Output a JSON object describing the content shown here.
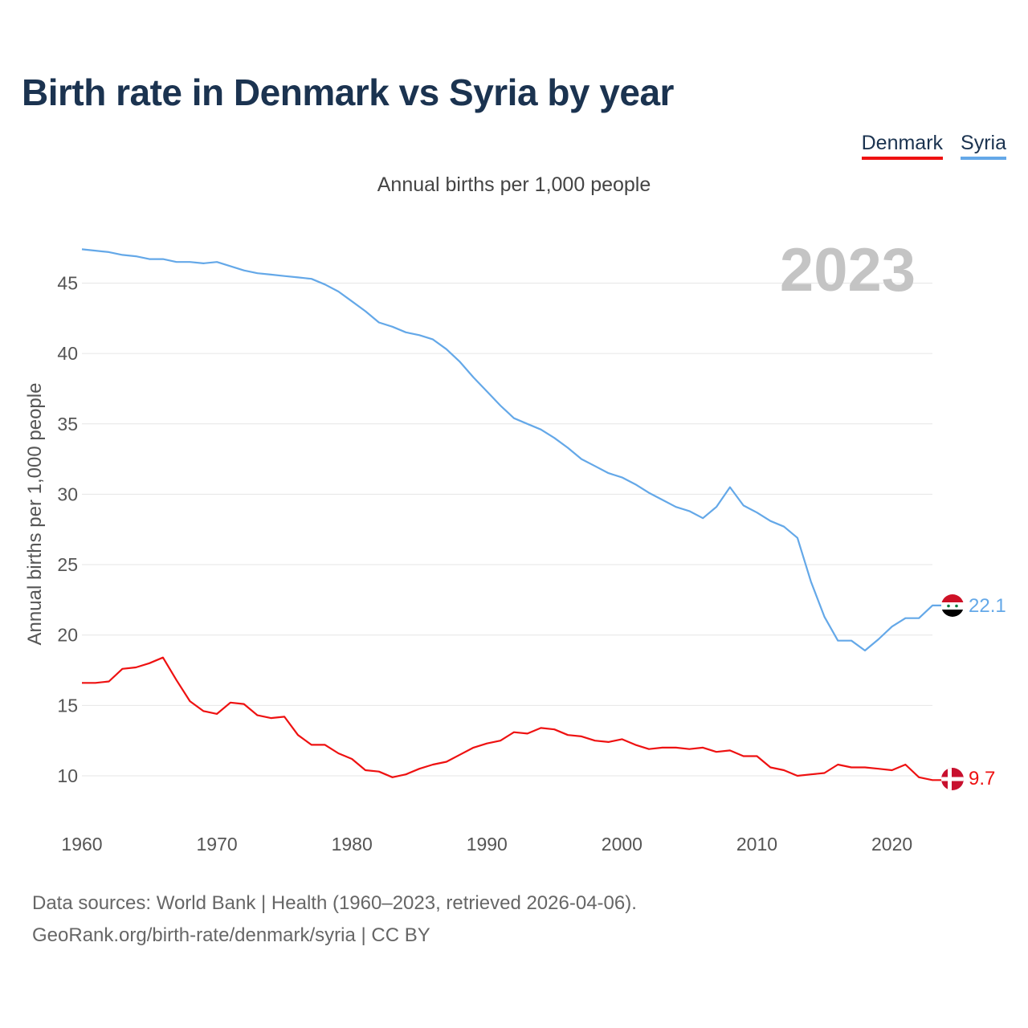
{
  "title": "Birth rate in Denmark vs Syria by year",
  "subtitle": "Annual births per 1,000 people",
  "legend": [
    {
      "label": "Denmark",
      "color": "#ee1111"
    },
    {
      "label": "Syria",
      "color": "#64a8e8"
    }
  ],
  "footer": {
    "line1": "Data sources: World Bank | Health (1960–2023, retrieved 2026-04-06).",
    "line2": "GeoRank.org/birth-rate/denmark/syria | CC BY"
  },
  "chart_data": {
    "type": "line",
    "year_label": "2023",
    "ylabel": "Annual births per 1,000 people",
    "xlim": [
      1960,
      2023
    ],
    "ylim": [
      7,
      49
    ],
    "yticks": [
      10,
      15,
      20,
      25,
      30,
      35,
      40,
      45
    ],
    "xticks": [
      1960,
      1970,
      1980,
      1990,
      2000,
      2010,
      2020
    ],
    "grid": true,
    "x": [
      1960,
      1961,
      1962,
      1963,
      1964,
      1965,
      1966,
      1967,
      1968,
      1969,
      1970,
      1971,
      1972,
      1973,
      1974,
      1975,
      1976,
      1977,
      1978,
      1979,
      1980,
      1981,
      1982,
      1983,
      1984,
      1985,
      1986,
      1987,
      1988,
      1989,
      1990,
      1991,
      1992,
      1993,
      1994,
      1995,
      1996,
      1997,
      1998,
      1999,
      2000,
      2001,
      2002,
      2003,
      2004,
      2005,
      2006,
      2007,
      2008,
      2009,
      2010,
      2011,
      2012,
      2013,
      2014,
      2015,
      2016,
      2017,
      2018,
      2019,
      2020,
      2021,
      2022,
      2023
    ],
    "series": [
      {
        "name": "Syria",
        "color": "#64a8e8",
        "end_label": "22.1",
        "values": [
          47.4,
          47.3,
          47.2,
          47.0,
          46.9,
          46.7,
          46.7,
          46.5,
          46.5,
          46.4,
          46.5,
          46.2,
          45.9,
          45.7,
          45.6,
          45.5,
          45.4,
          45.3,
          44.9,
          44.4,
          43.7,
          43.0,
          42.2,
          41.9,
          41.5,
          41.3,
          41.0,
          40.3,
          39.4,
          38.3,
          37.3,
          36.3,
          35.4,
          35.0,
          34.6,
          34.0,
          33.3,
          32.5,
          32.0,
          31.5,
          31.2,
          30.7,
          30.1,
          29.6,
          29.1,
          28.8,
          28.3,
          29.1,
          30.5,
          29.2,
          28.7,
          28.1,
          27.7,
          26.9,
          23.8,
          21.3,
          19.6,
          19.6,
          18.9,
          19.7,
          20.6,
          21.2,
          21.2,
          22.1
        ]
      },
      {
        "name": "Denmark",
        "color": "#ee1111",
        "end_label": "9.7",
        "values": [
          16.6,
          16.6,
          16.7,
          17.6,
          17.7,
          18.0,
          18.4,
          16.8,
          15.3,
          14.6,
          14.4,
          15.2,
          15.1,
          14.3,
          14.1,
          14.2,
          12.9,
          12.2,
          12.2,
          11.6,
          11.2,
          10.4,
          10.3,
          9.9,
          10.1,
          10.5,
          10.8,
          11.0,
          11.5,
          12.0,
          12.3,
          12.5,
          13.1,
          13.0,
          13.4,
          13.3,
          12.9,
          12.8,
          12.5,
          12.4,
          12.6,
          12.2,
          11.9,
          12.0,
          12.0,
          11.9,
          12.0,
          11.7,
          11.8,
          11.4,
          11.4,
          10.6,
          10.4,
          10.0,
          10.1,
          10.2,
          10.8,
          10.6,
          10.6,
          10.5,
          10.4,
          10.8,
          9.9,
          9.7
        ]
      }
    ]
  }
}
